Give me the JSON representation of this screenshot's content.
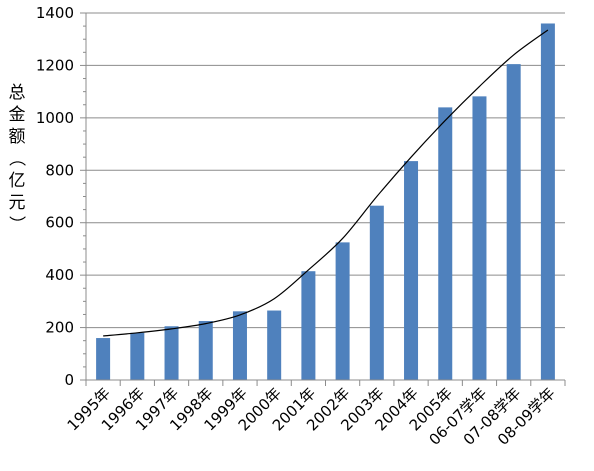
{
  "chart_data": {
    "type": "bar",
    "title": "",
    "xlabel": "",
    "ylabel": "总金额（亿元）",
    "ylim": [
      0,
      1400
    ],
    "yticks": [
      0,
      200,
      400,
      600,
      800,
      1000,
      1200,
      1400
    ],
    "grid": true,
    "legend": "none",
    "categories": [
      "1995年",
      "1996年",
      "1997年",
      "1998年",
      "1999年",
      "2000年",
      "2001年",
      "2002年",
      "2003年",
      "2004年",
      "2005年",
      "06-07学年",
      "07-08学年",
      "08-09学年"
    ],
    "series": [
      {
        "values": [
          160,
          180,
          205,
          225,
          262,
          265,
          415,
          525,
          665,
          835,
          1040,
          1082,
          1205,
          1360
        ],
        "color": "#4f81bd"
      }
    ],
    "trendline": {
      "type": "line",
      "values": [
        168,
        180,
        195,
        215,
        248,
        310,
        420,
        540,
        700,
        850,
        990,
        1120,
        1240,
        1335
      ],
      "color": "#000000"
    }
  }
}
